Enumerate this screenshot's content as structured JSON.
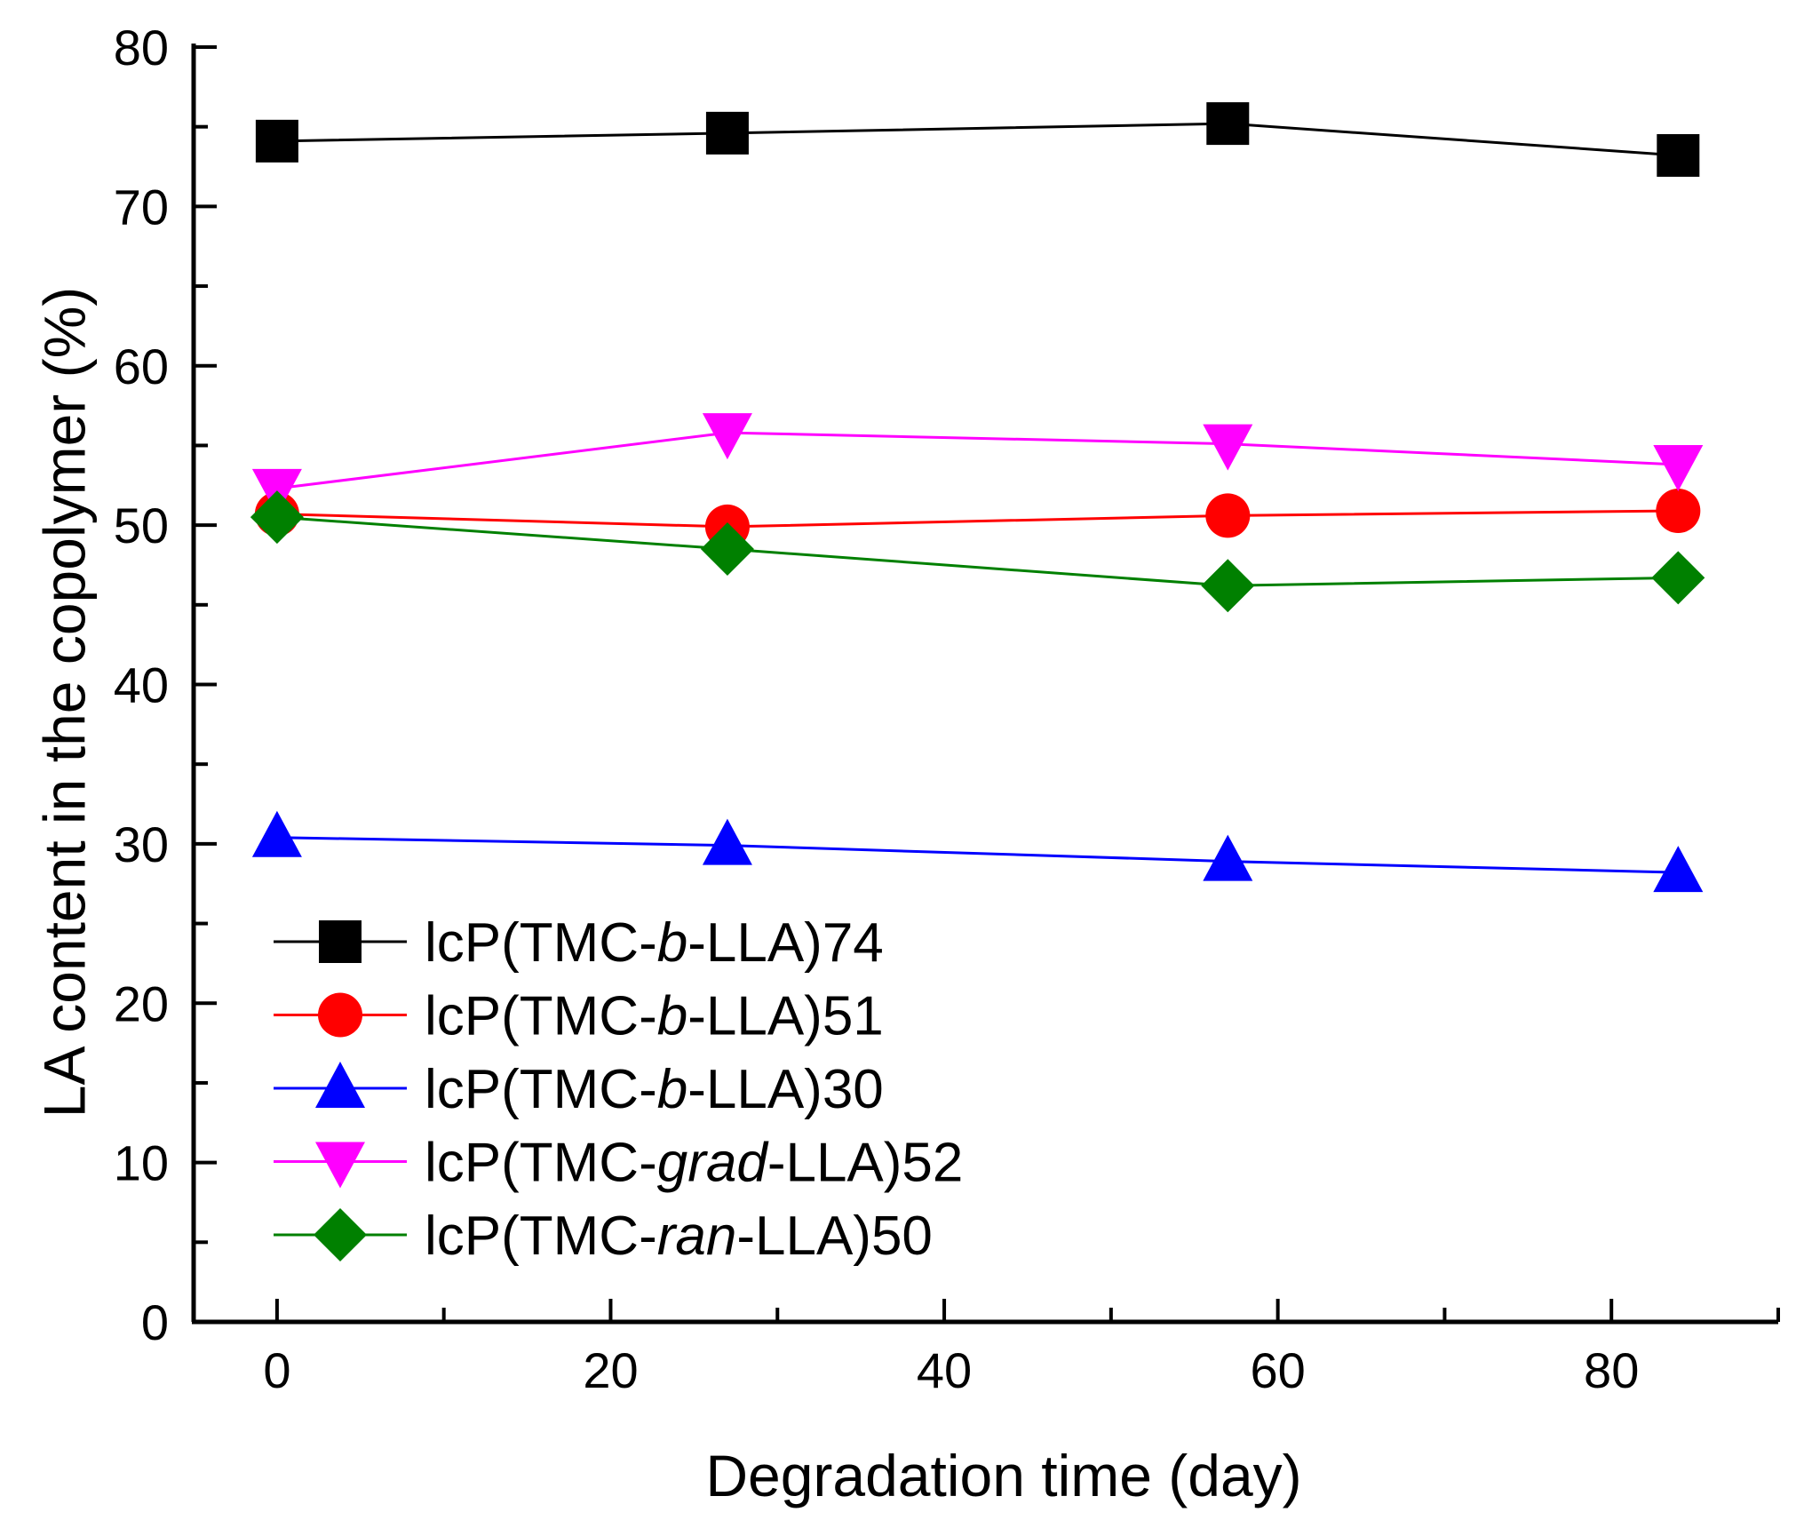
{
  "chart_data": {
    "type": "line",
    "title": "",
    "xlabel": "Degradation time (day)",
    "ylabel": "LA content in the copolymer (%)",
    "xlim": [
      -5,
      90
    ],
    "ylim": [
      0,
      80
    ],
    "xticks": [
      0,
      20,
      40,
      60,
      80
    ],
    "xtick_labels": [
      "0",
      "20",
      "40",
      "60",
      "80"
    ],
    "yticks": [
      0,
      10,
      20,
      30,
      40,
      50,
      60,
      70,
      80
    ],
    "ytick_labels": [
      "0",
      "10",
      "20",
      "30",
      "40",
      "50",
      "60",
      "70",
      "80"
    ],
    "legend_location": "lower-left",
    "series": [
      {
        "name_prefix": "lcP(TMC-",
        "name_italic": "b",
        "name_suffix": "-LLA)74",
        "color": "#000000",
        "marker": "square",
        "x": [
          0,
          27,
          57,
          84
        ],
        "y": [
          74.1,
          74.6,
          75.2,
          73.2
        ]
      },
      {
        "name_prefix": "lcP(TMC-",
        "name_italic": "b",
        "name_suffix": "-LLA)51",
        "color": "#ff0000",
        "marker": "circle",
        "x": [
          0,
          27,
          57,
          84
        ],
        "y": [
          50.7,
          49.9,
          50.6,
          50.9
        ]
      },
      {
        "name_prefix": "lcP(TMC-",
        "name_italic": "b",
        "name_suffix": "-LLA)30",
        "color": "#0000ff",
        "marker": "triangle-up",
        "x": [
          0,
          27,
          57,
          84
        ],
        "y": [
          30.4,
          29.9,
          28.9,
          28.2
        ]
      },
      {
        "name_prefix": "lcP(TMC-",
        "name_italic": "grad",
        "name_suffix": "-LLA)52",
        "color": "#ff00ff",
        "marker": "triangle-down",
        "x": [
          0,
          27,
          57,
          84
        ],
        "y": [
          52.3,
          55.8,
          55.1,
          53.8
        ]
      },
      {
        "name_prefix": "lcP(TMC-",
        "name_italic": "ran",
        "name_suffix": "-LLA)50",
        "color": "#008000",
        "marker": "diamond",
        "x": [
          0,
          27,
          57,
          84
        ],
        "y": [
          50.5,
          48.5,
          46.2,
          46.7
        ]
      }
    ]
  }
}
